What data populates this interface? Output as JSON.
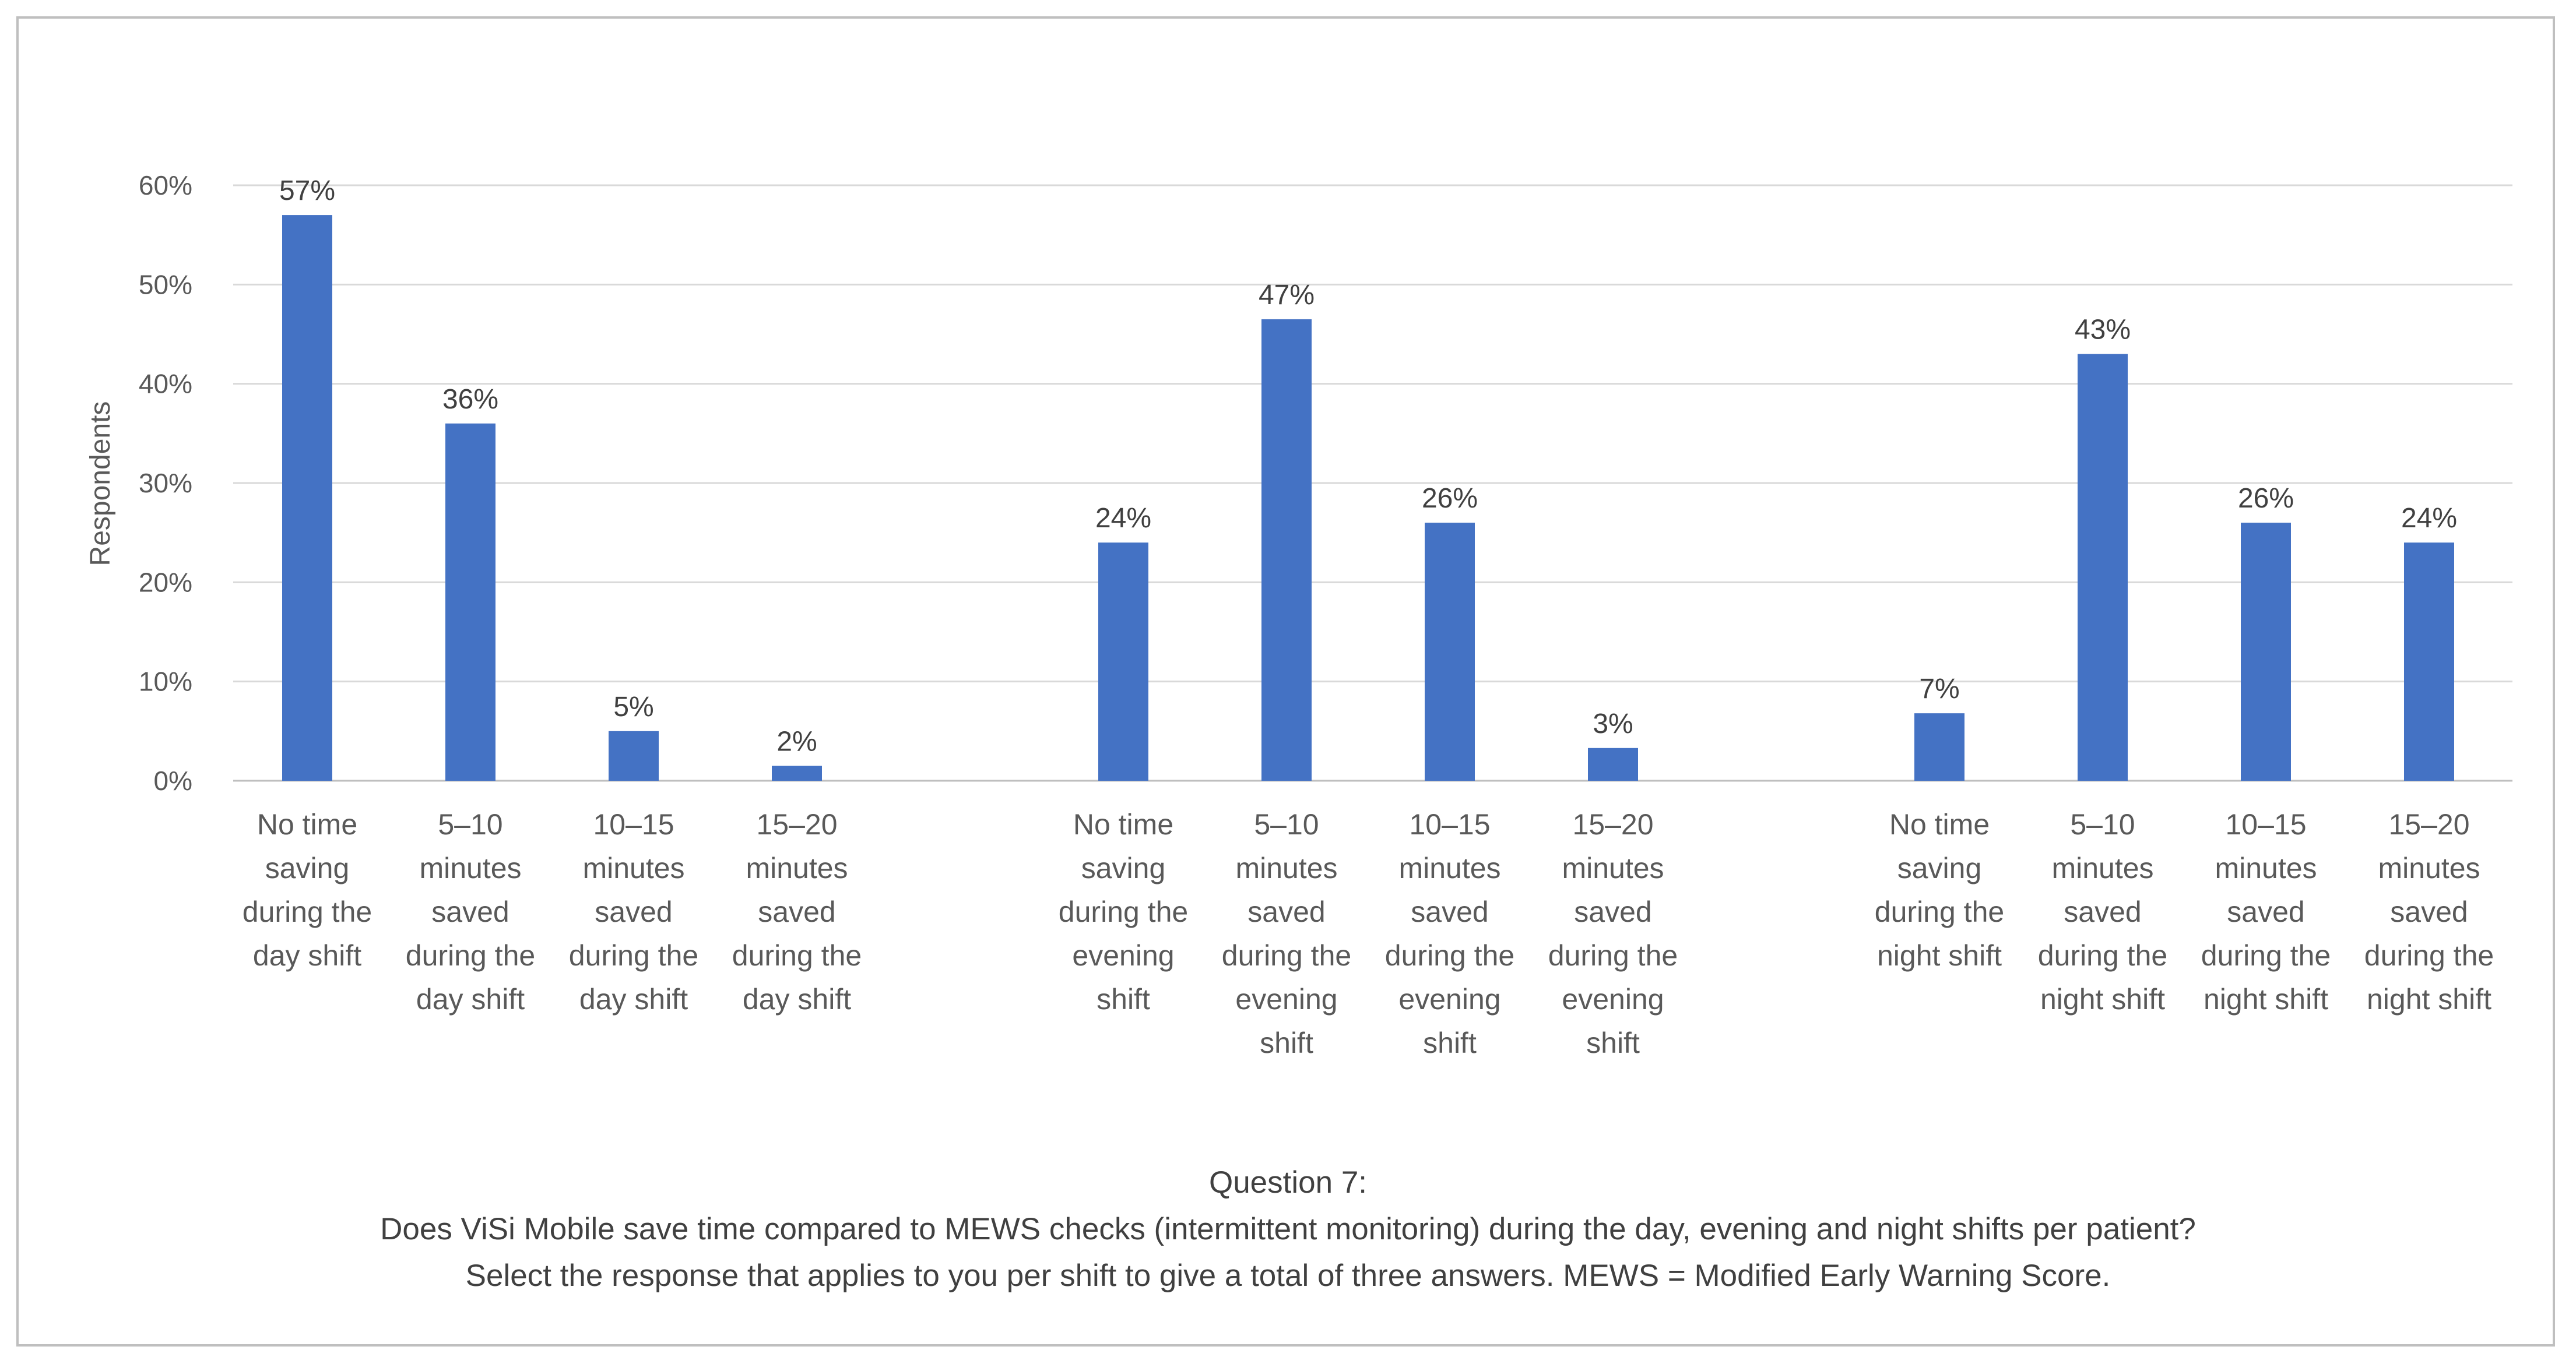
{
  "chart_data": {
    "type": "bar",
    "ylabel": "Respondents",
    "ylim": [
      0,
      60
    ],
    "yticks": [
      "0%",
      "10%",
      "20%",
      "30%",
      "40%",
      "50%",
      "60%"
    ],
    "grid": true,
    "groups": [
      {
        "name": "day shift",
        "bars": [
          {
            "label": [
              "No time",
              "saving",
              "during the",
              "day shift"
            ],
            "value": 57,
            "value_label": "57%"
          },
          {
            "label": [
              "5–10",
              "minutes",
              "saved",
              "during the",
              "day shift"
            ],
            "value": 36,
            "value_label": "36%"
          },
          {
            "label": [
              "10–15",
              "minutes",
              "saved",
              "during the",
              "day shift"
            ],
            "value": 5,
            "value_label": "5%"
          },
          {
            "label": [
              "15–20",
              "minutes",
              "saved",
              "during the",
              "day shift"
            ],
            "value": 1.5,
            "value_label": "2%"
          }
        ]
      },
      {
        "name": "evening shift",
        "bars": [
          {
            "label": [
              "No time",
              "saving",
              "during the",
              "evening",
              "shift"
            ],
            "value": 24,
            "value_label": "24%"
          },
          {
            "label": [
              "5–10",
              "minutes",
              "saved",
              "during the",
              "evening",
              "shift"
            ],
            "value": 46.5,
            "value_label": "47%"
          },
          {
            "label": [
              "10–15",
              "minutes",
              "saved",
              "during the",
              "evening",
              "shift"
            ],
            "value": 26,
            "value_label": "26%"
          },
          {
            "label": [
              "15–20",
              "minutes",
              "saved",
              "during the",
              "evening",
              "shift"
            ],
            "value": 3.3,
            "value_label": "3%"
          }
        ]
      },
      {
        "name": "night shift",
        "bars": [
          {
            "label": [
              "No time",
              "saving",
              "during the",
              "night shift"
            ],
            "value": 6.8,
            "value_label": "7%"
          },
          {
            "label": [
              "5–10",
              "minutes",
              "saved",
              "during the",
              "night shift"
            ],
            "value": 43,
            "value_label": "43%"
          },
          {
            "label": [
              "10–15",
              "minutes",
              "saved",
              "during the",
              "night shift"
            ],
            "value": 26,
            "value_label": "26%"
          },
          {
            "label": [
              "15–20",
              "minutes",
              "saved",
              "during the",
              "night shift"
            ],
            "value": 24,
            "value_label": "24%"
          }
        ]
      }
    ],
    "caption": {
      "line1": "Question 7:",
      "line2": "Does ViSi Mobile save time compared to MEWS checks (intermittent monitoring) during the day, evening and night shifts per patient?",
      "line3": "Select the response that applies to you per shift to give a total of three answers. MEWS = Modified Early Warning Score."
    }
  },
  "colors": {
    "bar": "#4472c4",
    "grid": "#d9d9d9",
    "text": "#595959"
  }
}
